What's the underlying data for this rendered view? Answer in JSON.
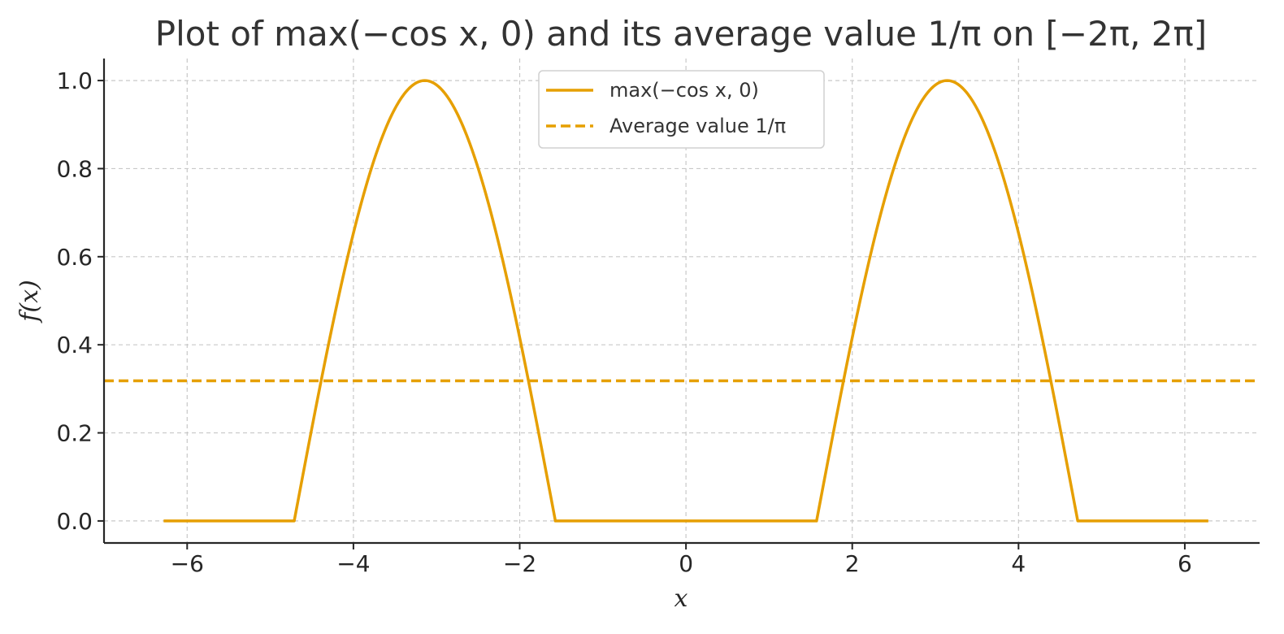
{
  "chart_data": {
    "type": "line",
    "title": "Plot of max(−cos x, 0) and its average value 1/π on [−2π, 2π]",
    "xlabel": "x",
    "ylabel": "f(x)",
    "xlim": [
      -7,
      6.9
    ],
    "ylim": [
      -0.05,
      1.05
    ],
    "xticks": [
      -6,
      -4,
      -2,
      0,
      2,
      4,
      6
    ],
    "xtick_labels": [
      "−6",
      "−4",
      "−2",
      "0",
      "2",
      "4",
      "6"
    ],
    "yticks": [
      0.0,
      0.2,
      0.4,
      0.6,
      0.8,
      1.0
    ],
    "ytick_labels": [
      "0.0",
      "0.2",
      "0.4",
      "0.6",
      "0.8",
      "1.0"
    ],
    "grid": true,
    "legend_position": "top-center",
    "series": [
      {
        "name": "max(−cos x, 0)",
        "style": "solid",
        "color": "#E69F00",
        "x": [
          -6.283,
          -4.712,
          -4.5,
          -4.25,
          -4.0,
          -3.75,
          -3.5,
          -3.25,
          -3.1416,
          -3.0,
          -2.75,
          -2.5,
          -2.25,
          -2.0,
          -1.75,
          -1.571,
          1.571,
          1.75,
          2.0,
          2.25,
          2.5,
          2.75,
          3.0,
          3.1416,
          3.25,
          3.5,
          3.75,
          4.0,
          4.25,
          4.5,
          4.712,
          6.283
        ],
        "y": [
          0.0,
          0.0,
          0.211,
          0.446,
          0.654,
          0.82,
          0.936,
          0.994,
          1.0,
          0.99,
          0.924,
          0.801,
          0.628,
          0.416,
          0.178,
          0.0,
          0.0,
          0.178,
          0.416,
          0.628,
          0.801,
          0.924,
          0.99,
          1.0,
          0.994,
          0.936,
          0.82,
          0.654,
          0.446,
          0.211,
          0.0,
          0.0
        ]
      },
      {
        "name": "Average value 1/π",
        "style": "dashed",
        "color": "#E69F00",
        "y": 0.3183
      }
    ]
  }
}
